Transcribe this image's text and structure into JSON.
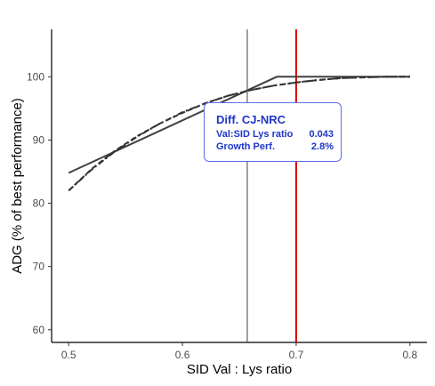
{
  "chart_data": {
    "type": "line",
    "xlabel": "SID Val : Lys ratio",
    "ylabel": "ADG (% of best performance)",
    "xlim": [
      0.485,
      0.815
    ],
    "ylim": [
      58.0,
      107.5
    ],
    "xticks": [
      "0.5",
      "0.6",
      "0.7",
      "0.8"
    ],
    "xtick_values": [
      0.5,
      0.6,
      0.7,
      0.8
    ],
    "yticks": [
      "60",
      "70",
      "80",
      "90",
      "100"
    ],
    "ytick_values": [
      60,
      70,
      80,
      90,
      100
    ],
    "grid": false,
    "series": [
      {
        "style": "solid",
        "color": "#404040",
        "x": [
          0.5,
          0.683,
          0.8
        ],
        "y": [
          84.8,
          100.0,
          100.0
        ]
      },
      {
        "style": "dashed",
        "color": "#333333",
        "x": [
          0.5,
          0.52,
          0.54,
          0.56,
          0.58,
          0.6,
          0.62,
          0.64,
          0.66,
          0.68,
          0.7,
          0.72,
          0.74,
          0.76,
          0.78,
          0.8
        ],
        "y": [
          82.0,
          85.4,
          88.2,
          90.6,
          92.6,
          94.3,
          95.8,
          97.0,
          97.9,
          98.6,
          99.1,
          99.5,
          99.8,
          99.9,
          100.0,
          100.0
        ]
      },
      {
        "style": "dotdash",
        "color": "#333333",
        "x": [
          0.5,
          0.52,
          0.54,
          0.56,
          0.58,
          0.6,
          0.62,
          0.64,
          0.66,
          0.68,
          0.7,
          0.72,
          0.74,
          0.76,
          0.78,
          0.8
        ],
        "y": [
          82.0,
          85.3,
          88.1,
          90.5,
          92.6,
          94.4,
          95.8,
          97.0,
          97.9,
          98.6,
          99.1,
          99.5,
          99.8,
          99.9,
          100.0,
          100.0
        ]
      }
    ],
    "vlines": [
      {
        "x": 0.657,
        "color": "#404040"
      },
      {
        "x": 0.7,
        "color": "#e00000"
      }
    ],
    "annotation": {
      "title": "Diff. CJ-NRC",
      "rows": [
        {
          "label": "Val:SID Lys ratio",
          "value": "0.043"
        },
        {
          "label": "Growth Perf.",
          "value": "2.8%"
        }
      ],
      "color": "#1f35c9"
    }
  }
}
